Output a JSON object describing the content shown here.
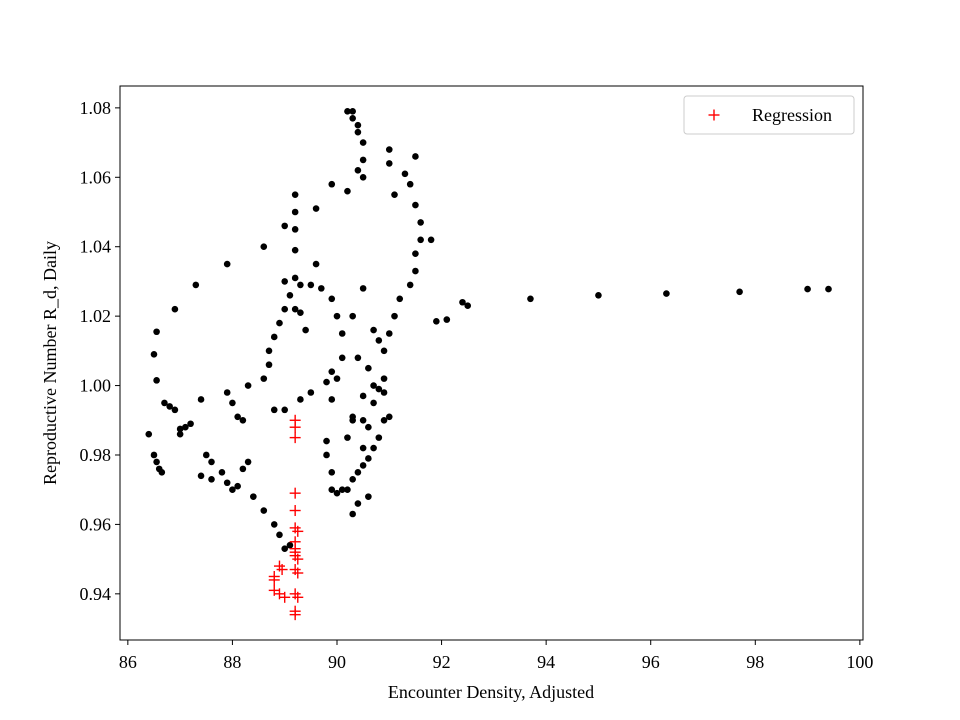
{
  "chart_data": {
    "type": "scatter",
    "x_label": "Encounter Density, Adjusted",
    "y_label": "Reproductive Number R_d, Daily",
    "xlim": [
      85.85,
      100.06
    ],
    "ylim": [
      0.9267,
      1.0863
    ],
    "xticks": [
      86,
      88,
      90,
      92,
      94,
      96,
      98,
      100
    ],
    "yticks": [
      0.94,
      0.96,
      0.98,
      {
        "value": 1,
        "label": "1.00"
      },
      1.02,
      1.04,
      1.06,
      1.08
    ],
    "legend": "upper right",
    "series": [
      {
        "color": "#000000",
        "marker": "o",
        "x": [
          92.4,
          92.5,
          93.7,
          95,
          96.3,
          97.7,
          99,
          99.4,
          92.1,
          91.9,
          86.4,
          86.5,
          86.55,
          86.6,
          86.65,
          86.5,
          86.55,
          86.55,
          86.7,
          86.8,
          86.9,
          87.0,
          87.1,
          87.2,
          87.0,
          86.9,
          87.3,
          87.9,
          87.4,
          87.5,
          87.6,
          87.4,
          87.6,
          87.8,
          87.9,
          88.0,
          88.1,
          88.2,
          88.3,
          88.4,
          88.6,
          88.8,
          88.9,
          89.0,
          89.1,
          87.9,
          88.0,
          88.1,
          88.2,
          88.3,
          88.6,
          88.8,
          89.0,
          89.3,
          89.5,
          89.8,
          89.9,
          88.7,
          88.7,
          88.8,
          88.9,
          89.0,
          89.1,
          89.0,
          89.2,
          89.3,
          89.5,
          89.7,
          89.2,
          89.2,
          89.2,
          89.2,
          89.0,
          88.6,
          89.2,
          89.6,
          89.9,
          89.6,
          89.9,
          90.0,
          90.1,
          90.1,
          90.0,
          89.9,
          89.8,
          89.8,
          89.9,
          89.9,
          90.0,
          90.2,
          90.3,
          90.4,
          90.5,
          90.6,
          90.7,
          90.8,
          90.6,
          90.5,
          90.3,
          90.2,
          90.5,
          90.9,
          91.0,
          90.7,
          90.8,
          90.9,
          90.9,
          91.0,
          91.1,
          91.2,
          91.4,
          91.5,
          91.5,
          91.6,
          91.6,
          91.5,
          91.4,
          91.3,
          91.5,
          91.0,
          91.0,
          90.5,
          90.5,
          90.5,
          90.4,
          90.3,
          90.2,
          90.3,
          90.4,
          90.2,
          90.4,
          90.5,
          90.3,
          90.6,
          90.7,
          90.8,
          90.9,
          90.4,
          90.7,
          90.5,
          90.3,
          90.4,
          90.6,
          90.3,
          90.1,
          89.3,
          89.4,
          91.8,
          91.1
        ],
        "values": [
          1.024,
          1.023,
          1.025,
          1.026,
          1.0265,
          1.027,
          1.0278,
          1.0278,
          1.019,
          1.0185,
          0.986,
          0.98,
          0.978,
          0.976,
          0.975,
          1.009,
          1.0155,
          1.0015,
          0.995,
          0.994,
          0.993,
          0.9875,
          0.988,
          0.989,
          0.986,
          1.022,
          1.029,
          1.035,
          0.996,
          0.98,
          0.978,
          0.974,
          0.973,
          0.975,
          0.972,
          0.97,
          0.971,
          0.976,
          0.978,
          0.968,
          0.964,
          0.96,
          0.957,
          0.953,
          0.954,
          0.998,
          0.995,
          0.991,
          0.99,
          1.0,
          1.002,
          0.993,
          0.993,
          0.996,
          0.998,
          1.001,
          1.004,
          1.006,
          1.01,
          1.014,
          1.018,
          1.022,
          1.026,
          1.03,
          1.031,
          1.029,
          1.029,
          1.028,
          1.022,
          1.045,
          1.05,
          1.055,
          1.046,
          1.04,
          1.039,
          1.051,
          1.058,
          1.035,
          1.025,
          1.02,
          1.015,
          1.008,
          1.002,
          0.996,
          0.984,
          0.98,
          0.975,
          0.97,
          0.969,
          0.97,
          0.973,
          0.975,
          0.977,
          0.979,
          0.982,
          0.985,
          0.988,
          0.99,
          0.991,
          0.985,
          0.982,
          0.99,
          0.991,
          0.995,
          0.999,
          1.002,
          1.01,
          1.015,
          1.02,
          1.025,
          1.029,
          1.033,
          1.038,
          1.042,
          1.047,
          1.052,
          1.058,
          1.061,
          1.066,
          1.068,
          1.064,
          1.06,
          1.065,
          1.07,
          1.073,
          1.077,
          1.079,
          1.079,
          1.075,
          1.056,
          1.062,
          1.028,
          1.02,
          1.005,
          1.0,
          1.013,
          0.998,
          1.008,
          1.016,
          0.997,
          0.99,
          0.966,
          0.968,
          0.963,
          0.97,
          1.021,
          1.016,
          1.042,
          1.055
        ]
      },
      {
        "name": "Regression",
        "color": "#ff0000",
        "marker": "+",
        "x": [
          89.2,
          89.2,
          89.2,
          89.2,
          89.2,
          89.2,
          89.25,
          89.2,
          89.2,
          89.2,
          89.2,
          89.25,
          89.2,
          89.25,
          89.2,
          89.25,
          89.2,
          89.2,
          88.8,
          88.8,
          88.9,
          88.95,
          88.8,
          88.9,
          89.0
        ],
        "values": [
          0.99,
          0.988,
          0.985,
          0.969,
          0.964,
          0.959,
          0.958,
          0.955,
          0.953,
          0.952,
          0.951,
          0.95,
          0.947,
          0.946,
          0.94,
          0.939,
          0.935,
          0.934,
          0.945,
          0.944,
          0.948,
          0.947,
          0.941,
          0.94,
          0.939
        ]
      }
    ]
  }
}
